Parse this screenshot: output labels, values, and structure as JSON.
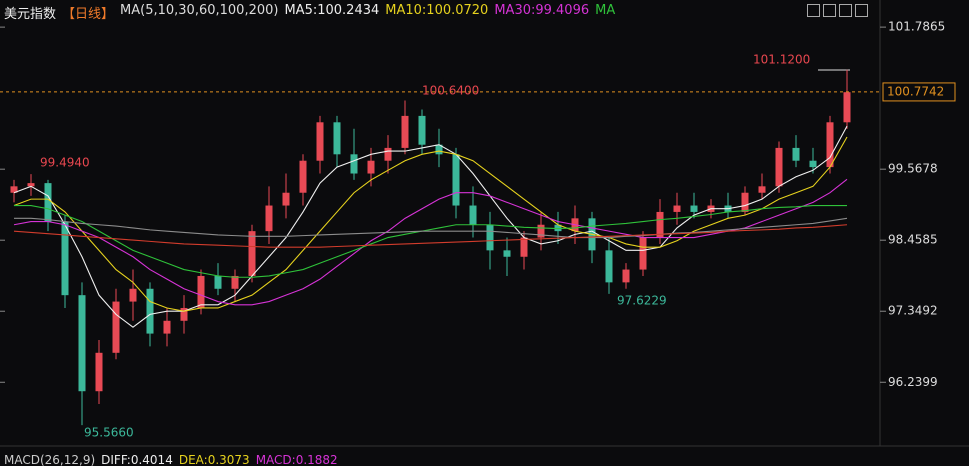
{
  "chart_data": {
    "type": "candlestick",
    "header": {
      "name": "美元指数",
      "period": "【日线】",
      "ma_def": "MA(5,10,30,60,100,200)",
      "ma5": "MA5:100.2434",
      "ma10": "MA10:100.0720",
      "ma30": "MA30:99.4096",
      "ma_more": "MA"
    },
    "footer": {
      "macd_def": "MACD(26,12,9)",
      "diff": "DIFF:0.4014",
      "dea": "DEA:0.3073",
      "macd": "MACD:0.1882"
    },
    "annotations": [
      "101.1200",
      "100.6400",
      "99.4940",
      "97.6229",
      "95.5660"
    ],
    "current_price": 100.7742,
    "ylim": [
      95.26,
      102.21
    ],
    "yticks": [
      101.7865,
      99.5678,
      98.4585,
      97.3492,
      96.2399
    ],
    "up_color": "#e84a55",
    "down_color": "#3cb89a",
    "candles": {
      "open": [
        99.2,
        99.3,
        99.35,
        98.75,
        97.6,
        96.1,
        96.7,
        97.5,
        97.7,
        97.0,
        97.2,
        97.4,
        97.9,
        97.7,
        97.9,
        98.6,
        99.0,
        99.2,
        99.7,
        100.3,
        99.8,
        99.5,
        99.7,
        99.9,
        100.4,
        99.95,
        99.8,
        99.0,
        98.7,
        98.3,
        98.2,
        98.5,
        98.7,
        98.6,
        98.8,
        98.3,
        97.8,
        98.0,
        98.5,
        98.9,
        99.0,
        98.9,
        99.0,
        98.9,
        99.2,
        99.3,
        99.9,
        99.7,
        99.6,
        100.3
      ],
      "high": [
        99.4,
        99.49,
        99.4,
        98.85,
        97.8,
        96.9,
        97.7,
        98.0,
        97.8,
        97.4,
        97.6,
        98.0,
        98.1,
        98.0,
        98.7,
        99.3,
        99.5,
        99.8,
        100.4,
        100.4,
        100.2,
        99.9,
        100.1,
        100.64,
        100.5,
        100.2,
        99.9,
        99.3,
        98.9,
        98.5,
        98.6,
        98.9,
        98.9,
        99.0,
        98.9,
        98.5,
        98.1,
        98.6,
        99.1,
        99.2,
        99.2,
        99.1,
        99.2,
        99.3,
        99.5,
        100.0,
        100.1,
        99.9,
        100.4,
        101.12
      ],
      "low": [
        99.05,
        99.15,
        98.6,
        97.4,
        95.57,
        95.9,
        96.6,
        97.2,
        96.8,
        96.8,
        97.0,
        97.3,
        97.6,
        97.5,
        97.8,
        98.4,
        98.8,
        99.0,
        99.5,
        99.6,
        99.4,
        99.3,
        99.5,
        99.8,
        99.8,
        99.6,
        98.8,
        98.5,
        98.0,
        97.9,
        98.0,
        98.3,
        98.4,
        98.4,
        98.1,
        97.62,
        97.7,
        97.9,
        98.4,
        98.7,
        98.8,
        98.8,
        98.8,
        98.85,
        99.1,
        99.2,
        99.6,
        99.5,
        99.5,
        100.2
      ],
      "close": [
        99.3,
        99.35,
        98.75,
        97.6,
        96.1,
        96.7,
        97.5,
        97.7,
        97.0,
        97.2,
        97.4,
        97.9,
        97.7,
        97.9,
        98.6,
        99.0,
        99.2,
        99.7,
        100.3,
        99.8,
        99.5,
        99.7,
        99.9,
        100.4,
        99.95,
        99.8,
        99.0,
        98.7,
        98.3,
        98.2,
        98.5,
        98.7,
        98.6,
        98.8,
        98.3,
        97.8,
        98.0,
        98.5,
        98.9,
        99.0,
        98.9,
        99.0,
        98.9,
        99.2,
        99.3,
        99.9,
        99.7,
        99.6,
        100.3,
        100.77
      ]
    },
    "series": [
      {
        "name": "MA5",
        "color": "#f0f0f0",
        "values": [
          99.2,
          99.3,
          99.15,
          98.7,
          98.2,
          97.6,
          97.3,
          97.1,
          97.3,
          97.35,
          97.35,
          97.45,
          97.45,
          97.6,
          97.9,
          98.2,
          98.5,
          98.9,
          99.35,
          99.6,
          99.7,
          99.8,
          99.85,
          99.85,
          99.9,
          99.95,
          99.8,
          99.5,
          99.15,
          98.8,
          98.5,
          98.4,
          98.45,
          98.55,
          98.6,
          98.45,
          98.3,
          98.3,
          98.35,
          98.65,
          98.85,
          98.95,
          98.95,
          99.0,
          99.1,
          99.3,
          99.45,
          99.55,
          99.75,
          100.24
        ]
      },
      {
        "name": "MA10",
        "color": "#e6d21e",
        "values": [
          99.0,
          99.1,
          99.1,
          98.9,
          98.6,
          98.3,
          98.0,
          97.8,
          97.5,
          97.4,
          97.35,
          97.4,
          97.4,
          97.5,
          97.6,
          97.8,
          98.0,
          98.3,
          98.6,
          98.9,
          99.2,
          99.4,
          99.55,
          99.7,
          99.8,
          99.85,
          99.8,
          99.7,
          99.5,
          99.3,
          99.1,
          98.9,
          98.7,
          98.6,
          98.55,
          98.5,
          98.4,
          98.35,
          98.35,
          98.45,
          98.6,
          98.7,
          98.8,
          98.85,
          98.95,
          99.1,
          99.2,
          99.3,
          99.6,
          100.07
        ]
      },
      {
        "name": "MA30",
        "color": "#d633d6",
        "values": [
          98.7,
          98.75,
          98.75,
          98.7,
          98.6,
          98.5,
          98.35,
          98.2,
          98.0,
          97.85,
          97.7,
          97.6,
          97.5,
          97.45,
          97.45,
          97.5,
          97.6,
          97.7,
          97.85,
          98.05,
          98.25,
          98.45,
          98.6,
          98.8,
          98.95,
          99.1,
          99.2,
          99.2,
          99.15,
          99.05,
          98.95,
          98.85,
          98.75,
          98.7,
          98.65,
          98.6,
          98.55,
          98.5,
          98.5,
          98.5,
          98.5,
          98.55,
          98.6,
          98.65,
          98.75,
          98.85,
          98.95,
          99.05,
          99.2,
          99.41
        ]
      },
      {
        "name": "MA60",
        "color": "#2fc23a",
        "values": [
          99.0,
          99.0,
          98.95,
          98.85,
          98.75,
          98.6,
          98.45,
          98.3,
          98.2,
          98.1,
          98.0,
          97.95,
          97.9,
          97.88,
          97.88,
          97.9,
          97.95,
          98.0,
          98.1,
          98.2,
          98.3,
          98.4,
          98.5,
          98.55,
          98.6,
          98.65,
          98.7,
          98.7,
          98.7,
          98.68,
          98.66,
          98.65,
          98.64,
          98.65,
          98.68,
          98.7,
          98.72,
          98.75,
          98.78,
          98.8,
          98.83,
          98.86,
          98.9,
          98.92,
          98.95,
          98.97,
          98.98,
          99.0,
          99.0,
          99.0
        ]
      },
      {
        "name": "MA100",
        "color": "#8c8c8c",
        "values": [
          98.8,
          98.8,
          98.78,
          98.75,
          98.72,
          98.7,
          98.68,
          98.65,
          98.62,
          98.6,
          98.58,
          98.56,
          98.54,
          98.53,
          98.52,
          98.52,
          98.52,
          98.53,
          98.54,
          98.55,
          98.56,
          98.57,
          98.58,
          98.59,
          98.6,
          98.6,
          98.6,
          98.6,
          98.6,
          98.58,
          98.56,
          98.54,
          98.52,
          98.5,
          98.5,
          98.5,
          98.52,
          98.53,
          98.55,
          98.57,
          98.58,
          98.6,
          98.62,
          98.64,
          98.66,
          98.68,
          98.7,
          98.72,
          98.76,
          98.8
        ]
      },
      {
        "name": "MA200",
        "color": "#d23c2c",
        "values": [
          98.6,
          98.58,
          98.56,
          98.54,
          98.52,
          98.5,
          98.48,
          98.46,
          98.44,
          98.42,
          98.4,
          98.39,
          98.38,
          98.37,
          98.36,
          98.35,
          98.35,
          98.35,
          98.35,
          98.36,
          98.37,
          98.38,
          98.39,
          98.4,
          98.41,
          98.42,
          98.43,
          98.44,
          98.45,
          98.46,
          98.47,
          98.48,
          98.49,
          98.5,
          98.51,
          98.52,
          98.53,
          98.54,
          98.55,
          98.56,
          98.57,
          98.58,
          98.6,
          98.61,
          98.62,
          98.63,
          98.65,
          98.66,
          98.68,
          98.7
        ]
      }
    ]
  }
}
